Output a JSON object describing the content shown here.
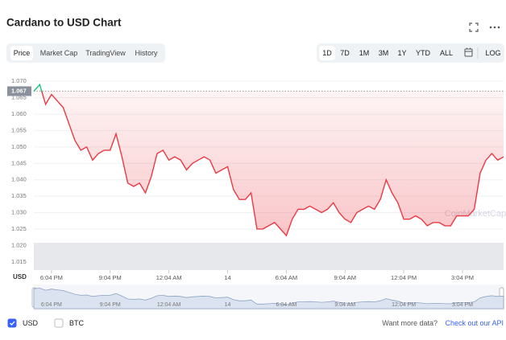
{
  "header": {
    "title": "Cardano to USD Chart"
  },
  "tabs": [
    "Price",
    "Market Cap",
    "TradingView",
    "History"
  ],
  "active_tab": "Price",
  "ranges": [
    "1D",
    "7D",
    "1M",
    "3M",
    "1Y",
    "YTD",
    "ALL"
  ],
  "active_range": "1D",
  "scale_button": "LOG",
  "chart_data": {
    "type": "line",
    "watermark": "CoinMarketCap",
    "currency_label": "USD",
    "reference_value": 1.067,
    "reference_label": "1.067",
    "up_color": "#16c784",
    "down_color": "#ea3943",
    "xlim": [
      0,
      80
    ],
    "xticks": [
      {
        "value": 3,
        "label": "6:04 PM"
      },
      {
        "value": 13,
        "label": "9:04 PM"
      },
      {
        "value": 23,
        "label": "12:04 AM"
      },
      {
        "value": 33,
        "label": "14"
      },
      {
        "value": 43,
        "label": "6:04 AM"
      },
      {
        "value": 53,
        "label": "9:04 AM"
      },
      {
        "value": 63,
        "label": "12:04 PM"
      },
      {
        "value": 73,
        "label": "3:04 PM"
      }
    ],
    "ylim": [
      1.0125,
      1.072
    ],
    "yticks": [
      1.015,
      {
        "value": 1.02,
        "label": "1.020"
      },
      1.025,
      {
        "value": 1.03,
        "label": "1.030"
      },
      1.035,
      {
        "value": 1.04,
        "label": "1.040"
      },
      1.045,
      {
        "value": 1.05,
        "label": "1.050"
      },
      1.055,
      {
        "value": 1.06,
        "label": "1.060"
      },
      1.065,
      {
        "value": 1.07,
        "label": "1.070"
      }
    ],
    "grid": true,
    "series": [
      {
        "name": "Price",
        "values": [
          1.067,
          1.069,
          1.063,
          1.066,
          1.064,
          1.062,
          1.057,
          1.052,
          1.049,
          1.05,
          1.046,
          1.048,
          1.049,
          1.049,
          1.054,
          1.047,
          1.039,
          1.038,
          1.039,
          1.036,
          1.041,
          1.048,
          1.049,
          1.046,
          1.047,
          1.046,
          1.043,
          1.045,
          1.046,
          1.047,
          1.046,
          1.042,
          1.043,
          1.044,
          1.037,
          1.034,
          1.034,
          1.036,
          1.025,
          1.025,
          1.026,
          1.027,
          1.025,
          1.023,
          1.028,
          1.031,
          1.031,
          1.032,
          1.031,
          1.03,
          1.031,
          1.033,
          1.03,
          1.028,
          1.027,
          1.03,
          1.031,
          1.032,
          1.031,
          1.034,
          1.04,
          1.036,
          1.033,
          1.028,
          1.028,
          1.029,
          1.028,
          1.026,
          1.027,
          1.027,
          1.026,
          1.026,
          1.029,
          1.029,
          1.029,
          1.031,
          1.042,
          1.046,
          1.048,
          1.046,
          1.047
        ]
      }
    ]
  },
  "footer": {
    "currencies": [
      "USD",
      "BTC"
    ],
    "checked": "USD",
    "note": "Want more data?",
    "link": "Check out our API"
  }
}
